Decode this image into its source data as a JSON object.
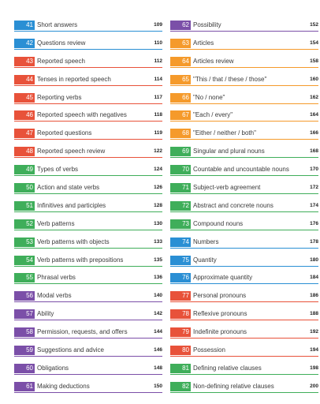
{
  "left_column": [
    {
      "num": "41",
      "title": "Short answers",
      "page": "109",
      "color": "#2a8fd4"
    },
    {
      "num": "42",
      "title": "Questions review",
      "page": "110",
      "color": "#2a8fd4"
    },
    {
      "num": "43",
      "title": "Reported speech",
      "page": "112",
      "color": "#e8523a"
    },
    {
      "num": "44",
      "title": "Tenses in reported speech",
      "page": "114",
      "color": "#e8523a"
    },
    {
      "num": "45",
      "title": "Reporting verbs",
      "page": "117",
      "color": "#e8523a"
    },
    {
      "num": "46",
      "title": "Reported speech with negatives",
      "page": "118",
      "color": "#e8523a"
    },
    {
      "num": "47",
      "title": "Reported questions",
      "page": "119",
      "color": "#e8523a"
    },
    {
      "num": "48",
      "title": "Reported speech review",
      "page": "122",
      "color": "#e8523a"
    },
    {
      "num": "49",
      "title": "Types of verbs",
      "page": "124",
      "color": "#3fae5a"
    },
    {
      "num": "50",
      "title": "Action and state verbs",
      "page": "126",
      "color": "#3fae5a"
    },
    {
      "num": "51",
      "title": "Infinitives and participles",
      "page": "128",
      "color": "#3fae5a"
    },
    {
      "num": "52",
      "title": "Verb patterns",
      "page": "130",
      "color": "#3fae5a"
    },
    {
      "num": "53",
      "title": "Verb patterns with objects",
      "page": "133",
      "color": "#3fae5a"
    },
    {
      "num": "54",
      "title": "Verb patterns with prepositions",
      "page": "135",
      "color": "#3fae5a"
    },
    {
      "num": "55",
      "title": "Phrasal verbs",
      "page": "136",
      "color": "#3fae5a"
    },
    {
      "num": "56",
      "title": "Modal verbs",
      "page": "140",
      "color": "#7b4fa8"
    },
    {
      "num": "57",
      "title": "Ability",
      "page": "142",
      "color": "#7b4fa8"
    },
    {
      "num": "58",
      "title": "Permission, requests, and offers",
      "page": "144",
      "color": "#7b4fa8"
    },
    {
      "num": "59",
      "title": "Suggestions and advice",
      "page": "146",
      "color": "#7b4fa8"
    },
    {
      "num": "60",
      "title": "Obligations",
      "page": "148",
      "color": "#7b4fa8"
    },
    {
      "num": "61",
      "title": "Making deductions",
      "page": "150",
      "color": "#7b4fa8"
    }
  ],
  "right_column": [
    {
      "num": "62",
      "title": "Possibility",
      "page": "152",
      "color": "#7b4fa8"
    },
    {
      "num": "63",
      "title": "Articles",
      "page": "154",
      "color": "#f59a2b"
    },
    {
      "num": "64",
      "title": "Articles review",
      "page": "158",
      "color": "#f59a2b"
    },
    {
      "num": "65",
      "title": "\"This / that / these / those\"",
      "page": "160",
      "color": "#f59a2b"
    },
    {
      "num": "66",
      "title": "\"No / none\"",
      "page": "162",
      "color": "#f59a2b"
    },
    {
      "num": "67",
      "title": "\"Each / every\"",
      "page": "164",
      "color": "#f59a2b"
    },
    {
      "num": "68",
      "title": "\"Either / neither / both\"",
      "page": "166",
      "color": "#f59a2b"
    },
    {
      "num": "69",
      "title": "Singular and plural nouns",
      "page": "168",
      "color": "#3fae5a"
    },
    {
      "num": "70",
      "title": "Countable and uncountable nouns",
      "page": "170",
      "color": "#3fae5a"
    },
    {
      "num": "71",
      "title": "Subject-verb agreement",
      "page": "172",
      "color": "#3fae5a"
    },
    {
      "num": "72",
      "title": "Abstract and concrete nouns",
      "page": "174",
      "color": "#3fae5a"
    },
    {
      "num": "73",
      "title": "Compound nouns",
      "page": "176",
      "color": "#3fae5a"
    },
    {
      "num": "74",
      "title": "Numbers",
      "page": "178",
      "color": "#2a8fd4"
    },
    {
      "num": "75",
      "title": "Quantity",
      "page": "180",
      "color": "#2a8fd4"
    },
    {
      "num": "76",
      "title": "Approximate quantity",
      "page": "184",
      "color": "#2a8fd4"
    },
    {
      "num": "77",
      "title": "Personal pronouns",
      "page": "186",
      "color": "#e8523a"
    },
    {
      "num": "78",
      "title": "Reflexive pronouns",
      "page": "188",
      "color": "#e8523a"
    },
    {
      "num": "79",
      "title": "Indefinite pronouns",
      "page": "192",
      "color": "#e8523a"
    },
    {
      "num": "80",
      "title": "Possession",
      "page": "194",
      "color": "#e8523a"
    },
    {
      "num": "81",
      "title": "Defining relative clauses",
      "page": "198",
      "color": "#3fae5a"
    },
    {
      "num": "82",
      "title": "Non-defining relative clauses",
      "page": "200",
      "color": "#3fae5a"
    }
  ]
}
